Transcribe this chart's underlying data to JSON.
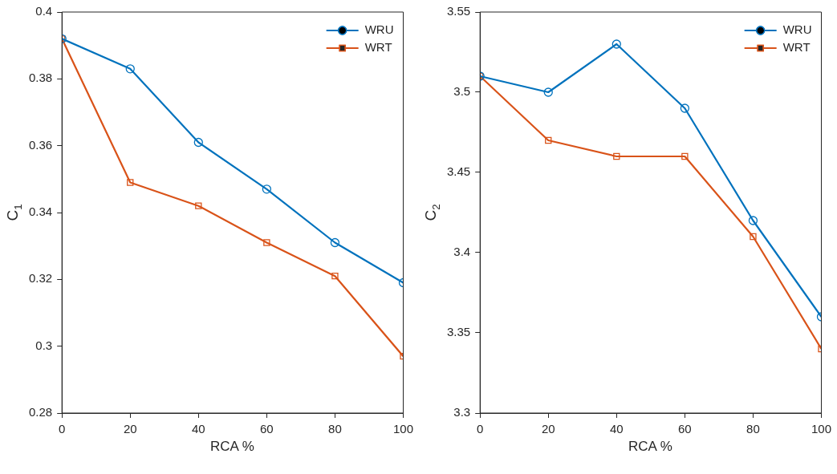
{
  "chart_data": [
    {
      "type": "line",
      "xlabel": "RCA %",
      "ylabel": "C$_{1}$",
      "x": [
        0,
        20,
        40,
        60,
        80,
        100
      ],
      "xlim": [
        0,
        100
      ],
      "xticks": [
        0,
        20,
        40,
        60,
        80,
        100
      ],
      "ylim": [
        0.28,
        0.4
      ],
      "yticks": [
        0.28,
        0.3,
        0.32,
        0.34,
        0.36,
        0.38,
        0.4
      ],
      "grid": false,
      "legend": "top right",
      "series": [
        {
          "name": "WRU",
          "color": "#0072bd",
          "marker": "circle",
          "values": [
            0.392,
            0.383,
            0.361,
            0.347,
            0.331,
            0.319
          ]
        },
        {
          "name": "WRT",
          "color": "#d95319",
          "marker": "square",
          "values": [
            0.392,
            0.349,
            0.342,
            0.331,
            0.321,
            0.297
          ]
        }
      ]
    },
    {
      "type": "line",
      "xlabel": "RCA %",
      "ylabel": "C$_{2}$",
      "x": [
        0,
        20,
        40,
        60,
        80,
        100
      ],
      "xlim": [
        0,
        100
      ],
      "xticks": [
        0,
        20,
        40,
        60,
        80,
        100
      ],
      "ylim": [
        3.3,
        3.55
      ],
      "yticks": [
        3.3,
        3.35,
        3.4,
        3.45,
        3.5,
        3.55
      ],
      "grid": false,
      "legend": "top right",
      "series": [
        {
          "name": "WRU",
          "color": "#0072bd",
          "marker": "circle",
          "values": [
            3.51,
            3.5,
            3.53,
            3.49,
            3.42,
            3.36
          ]
        },
        {
          "name": "WRT",
          "color": "#d95319",
          "marker": "square",
          "values": [
            3.51,
            3.47,
            3.46,
            3.46,
            3.41,
            3.34
          ]
        }
      ]
    }
  ]
}
